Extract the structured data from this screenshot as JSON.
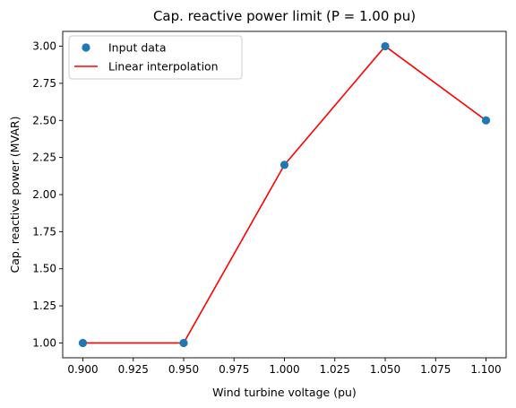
{
  "chart_data": {
    "type": "line",
    "title": "Cap. reactive power limit (P = 1.00 pu)",
    "xlabel": "Wind turbine voltage (pu)",
    "ylabel": "Cap. reactive power (MVAR)",
    "xlim": [
      0.89,
      1.11
    ],
    "ylim": [
      0.9,
      3.1
    ],
    "x_ticks": [
      "0.900",
      "0.925",
      "0.950",
      "0.975",
      "1.000",
      "1.025",
      "1.050",
      "1.075",
      "1.100"
    ],
    "y_ticks": [
      "1.00",
      "1.25",
      "1.50",
      "1.75",
      "2.00",
      "2.25",
      "2.50",
      "2.75",
      "3.00"
    ],
    "grid": false,
    "legend_position": "upper-left",
    "series": [
      {
        "name": "Input data",
        "kind": "scatter",
        "color": "#1f77b4",
        "x": [
          0.9,
          0.95,
          1.0,
          1.05,
          1.1
        ],
        "y": [
          1.0,
          1.0,
          2.2,
          3.0,
          2.5
        ]
      },
      {
        "name": "Linear interpolation",
        "kind": "line",
        "color": "#ff0000",
        "x": [
          0.9,
          0.95,
          1.0,
          1.05,
          1.1
        ],
        "y": [
          1.0,
          1.0,
          2.2,
          3.0,
          2.5
        ]
      }
    ]
  }
}
